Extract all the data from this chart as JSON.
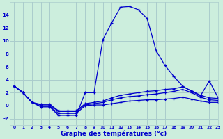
{
  "xlabel": "Graphe des températures (°c)",
  "background_color": "#cceedd",
  "grid_color": "#aacccc",
  "line_color": "#0000cc",
  "x_ticks": [
    0,
    1,
    2,
    3,
    4,
    5,
    6,
    7,
    8,
    9,
    10,
    11,
    12,
    13,
    14,
    15,
    16,
    17,
    18,
    19,
    20,
    21,
    22,
    23
  ],
  "ylim": [
    -3,
    16
  ],
  "xlim": [
    -0.5,
    23
  ],
  "yticks": [
    -2,
    0,
    2,
    4,
    6,
    8,
    10,
    12,
    14
  ],
  "series": [
    {
      "x": [
        0,
        1,
        2,
        3,
        4,
        5,
        6,
        7,
        8,
        9,
        10,
        11,
        12,
        13,
        14,
        15,
        16,
        17,
        18,
        19,
        20,
        21,
        22,
        23
      ],
      "y": [
        3,
        2,
        0.5,
        -0.2,
        -0.2,
        -1.5,
        -1.5,
        -1.5,
        2.0,
        2.0,
        10.2,
        12.8,
        15.2,
        15.3,
        14.8,
        13.4,
        8.5,
        6.2,
        4.5,
        3.0,
        2.2,
        1.5,
        3.8,
        1.2
      ]
    },
    {
      "x": [
        0,
        1,
        2,
        3,
        4,
        5,
        6,
        7,
        8,
        9,
        10,
        11,
        12,
        13,
        14,
        15,
        16,
        17,
        18,
        19,
        20,
        21,
        22,
        23
      ],
      "y": [
        3,
        2,
        0.5,
        0.2,
        0.2,
        -0.8,
        -0.8,
        -0.8,
        0.3,
        0.5,
        0.7,
        1.2,
        1.6,
        1.8,
        2.0,
        2.2,
        2.3,
        2.5,
        2.6,
        2.9,
        2.3,
        1.6,
        1.2,
        1.1
      ]
    },
    {
      "x": [
        0,
        1,
        2,
        3,
        4,
        5,
        6,
        7,
        8,
        9,
        10,
        11,
        12,
        13,
        14,
        15,
        16,
        17,
        18,
        19,
        20,
        21,
        22,
        23
      ],
      "y": [
        3,
        2,
        0.5,
        0.1,
        0.1,
        -0.9,
        -0.9,
        -0.9,
        0.1,
        0.3,
        0.5,
        0.9,
        1.2,
        1.4,
        1.5,
        1.7,
        1.8,
        2.0,
        2.2,
        2.5,
        2.0,
        1.3,
        0.9,
        0.8
      ]
    },
    {
      "x": [
        0,
        1,
        2,
        3,
        4,
        5,
        6,
        7,
        8,
        9,
        10,
        11,
        12,
        13,
        14,
        15,
        16,
        17,
        18,
        19,
        20,
        21,
        22,
        23
      ],
      "y": [
        3,
        2,
        0.5,
        -0.1,
        -0.1,
        -1.2,
        -1.2,
        -1.2,
        0.0,
        0.1,
        0.1,
        0.3,
        0.5,
        0.7,
        0.8,
        0.9,
        0.9,
        1.0,
        1.1,
        1.3,
        1.0,
        0.7,
        0.5,
        0.5
      ]
    }
  ]
}
